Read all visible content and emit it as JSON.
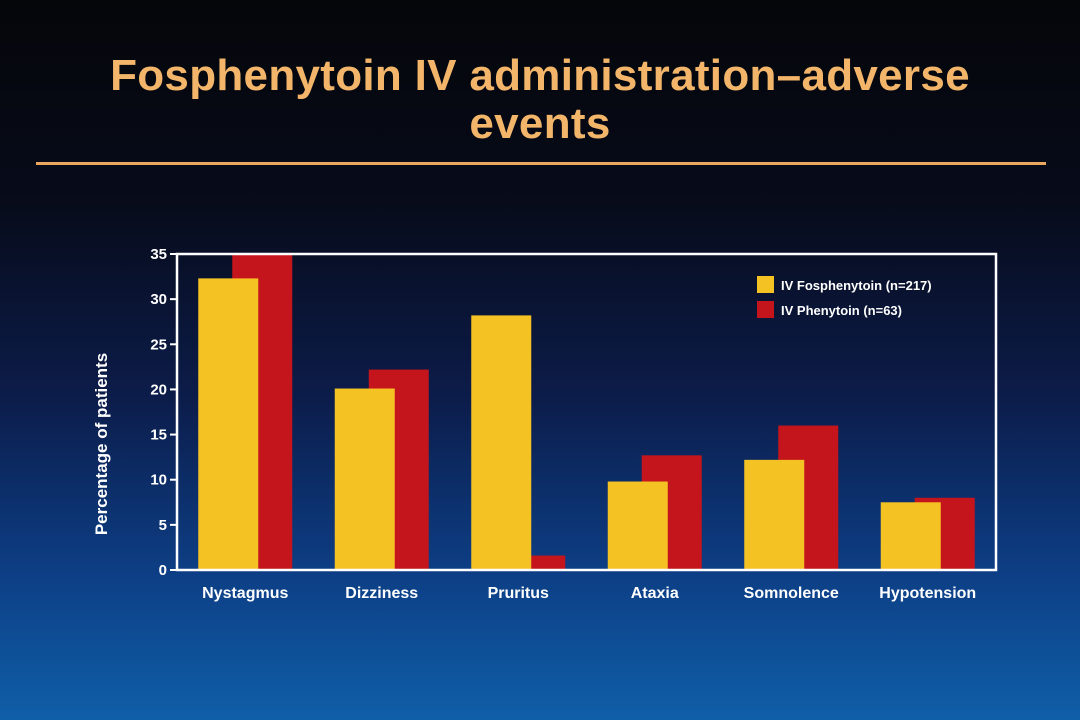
{
  "chart_data": {
    "type": "bar",
    "title_lines": [
      "Fosphenytoin IV administration–adverse",
      "events"
    ],
    "ylabel": "Percentage of patients",
    "xlabel": "",
    "ylim": [
      0,
      35
    ],
    "yticks": [
      0,
      5,
      10,
      15,
      20,
      25,
      30,
      35
    ],
    "categories": [
      "Nystagmus",
      "Dizziness",
      "Pruritus",
      "Ataxia",
      "Somnolence",
      "Hypotension"
    ],
    "series": [
      {
        "name": "IV Fosphenytoin (n=217)",
        "color": "#f5c224",
        "values": [
          32.3,
          20.1,
          28.2,
          9.8,
          12.2,
          7.5
        ]
      },
      {
        "name": "IV Phenytoin (n=63)",
        "color": "#c4151c",
        "values": [
          34.9,
          22.2,
          1.6,
          12.7,
          16.0,
          8.0
        ]
      }
    ],
    "legend_position": "top-right",
    "grid": false
  }
}
